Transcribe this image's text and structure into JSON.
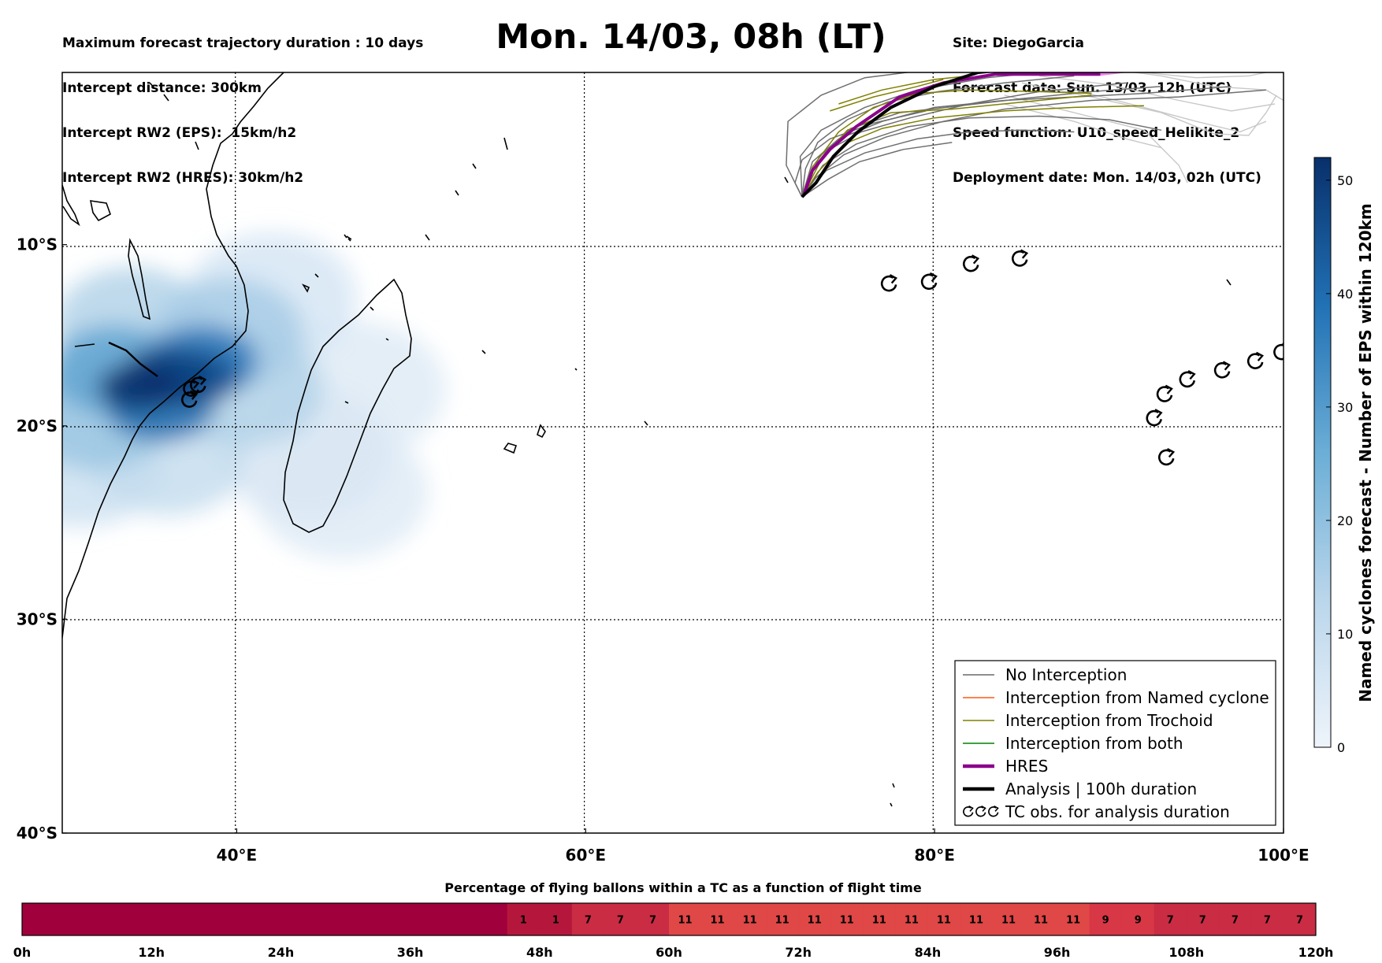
{
  "header": {
    "left_lines": [
      "Maximum forecast trajectory duration : 10 days",
      "Intercept distance: 300km",
      "Intercept RW2 (EPS):  15km/h2",
      "Intercept RW2 (HRES): 30km/h2"
    ],
    "title": "Mon. 14/03, 08h (LT)",
    "right_lines": [
      "Site: DiegoGarcia",
      "Forecast date: Sun. 13/03, 12h (UTC)",
      "Speed function: U10_speed_Helikite_2",
      "Deployment date: Mon. 14/03, 02h (UTC)"
    ]
  },
  "chart_data": [
    {
      "type": "map",
      "xlim": [
        30,
        100
      ],
      "ylim": [
        -40,
        -0.2
      ],
      "x_ticks": [
        {
          "value": 40,
          "label": "40°E"
        },
        {
          "value": 60,
          "label": "60°E"
        },
        {
          "value": 80,
          "label": "80°E"
        },
        {
          "value": 100,
          "label": "100°E"
        }
      ],
      "y_ticks": [
        {
          "value": -10,
          "label": "10°S"
        },
        {
          "value": -20,
          "label": "20°S"
        },
        {
          "value": -30,
          "label": "30°S"
        },
        {
          "value": -40,
          "label": "40°S"
        }
      ],
      "grid": true,
      "colorbar": {
        "label": "Named cyclones forecast - Number of EPS within 120km",
        "range": [
          0,
          52
        ],
        "ticks": [
          0,
          10,
          20,
          30,
          40,
          50
        ],
        "colors": [
          "#e8f0fa",
          "#08306b"
        ]
      },
      "density_field": [
        {
          "lon": 34.5,
          "lat": -17.9,
          "value": 52
        },
        {
          "lon": 36.0,
          "lat": -17.2,
          "value": 48
        },
        {
          "lon": 37.3,
          "lat": -17.4,
          "value": 46
        },
        {
          "lon": 38.0,
          "lat": -16.5,
          "value": 38
        },
        {
          "lon": 35.6,
          "lat": -19.0,
          "value": 40
        },
        {
          "lon": 33.0,
          "lat": -17.0,
          "value": 28
        },
        {
          "lon": 32.0,
          "lat": -19.5,
          "value": 18
        },
        {
          "lon": 34.0,
          "lat": -14.5,
          "value": 14
        },
        {
          "lon": 39.5,
          "lat": -15.0,
          "value": 16
        },
        {
          "lon": 40.5,
          "lat": -18.0,
          "value": 14
        },
        {
          "lon": 31.0,
          "lat": -22.0,
          "value": 8
        },
        {
          "lon": 36.0,
          "lat": -21.5,
          "value": 10
        },
        {
          "lon": 42.0,
          "lat": -13.0,
          "value": 6
        },
        {
          "lon": 44.0,
          "lat": -21.5,
          "value": 5
        },
        {
          "lon": 47.0,
          "lat": -18.0,
          "value": 4
        },
        {
          "lon": 46.0,
          "lat": -23.5,
          "value": 4
        }
      ],
      "tc_observations": [
        {
          "lon": 37.4,
          "lat": -18.0
        },
        {
          "lon": 37.8,
          "lat": -17.8
        },
        {
          "lon": 37.3,
          "lat": -18.6
        },
        {
          "lon": 77.4,
          "lat": -12.2
        },
        {
          "lon": 79.7,
          "lat": -12.1
        },
        {
          "lon": 82.1,
          "lat": -11.1
        },
        {
          "lon": 84.9,
          "lat": -10.8
        },
        {
          "lon": 99.9,
          "lat": -16.0
        },
        {
          "lon": 98.4,
          "lat": -16.5
        },
        {
          "lon": 96.5,
          "lat": -17.0
        },
        {
          "lon": 94.5,
          "lat": -17.5
        },
        {
          "lon": 93.2,
          "lat": -18.3
        },
        {
          "lon": 92.6,
          "lat": -19.6
        },
        {
          "lon": 93.3,
          "lat": -21.7
        }
      ],
      "trajectories": {
        "origin": {
          "lon": 72.4,
          "lat": -7.3
        },
        "analysis": [
          [
            72.4,
            -7.3
          ],
          [
            73.2,
            -6.5
          ],
          [
            74.2,
            -5.0
          ],
          [
            75.6,
            -3.6
          ],
          [
            77.5,
            -2.2
          ],
          [
            80.0,
            -1.0
          ],
          [
            82.5,
            -0.2
          ],
          [
            84.5,
            0.0
          ]
        ],
        "hres": [
          [
            72.5,
            -7.2
          ],
          [
            73.0,
            -5.8
          ],
          [
            74.0,
            -4.6
          ],
          [
            75.5,
            -3.3
          ],
          [
            78.0,
            -1.6
          ],
          [
            80.5,
            -0.8
          ],
          [
            83.5,
            -0.3
          ],
          [
            89.5,
            -0.3
          ],
          [
            92,
            0.0
          ]
        ],
        "eps_no_interception": [
          [
            [
              72.4,
              -7.3
            ],
            [
              71.5,
              -5.5
            ],
            [
              71.6,
              -3.0
            ],
            [
              73.5,
              -1.5
            ],
            [
              76,
              -0.5
            ],
            [
              80,
              0.0
            ]
          ],
          [
            [
              72.4,
              -7.3
            ],
            [
              72.3,
              -5.0
            ],
            [
              73.5,
              -3.5
            ],
            [
              76,
              -2.2
            ],
            [
              79,
              -1.2
            ],
            [
              83,
              -0.5
            ],
            [
              88,
              0.0
            ]
          ],
          [
            [
              72.4,
              -7.3
            ],
            [
              73.0,
              -5.3
            ],
            [
              74.5,
              -4.0
            ],
            [
              77,
              -3.0
            ],
            [
              80,
              -2.2
            ],
            [
              84,
              -1.8
            ],
            [
              88,
              -1.6
            ],
            [
              92,
              -1.4
            ],
            [
              97,
              -1.0
            ]
          ],
          [
            [
              72.4,
              -7.3
            ],
            [
              73.6,
              -5.5
            ],
            [
              75.5,
              -4.3
            ],
            [
              78.5,
              -3.3
            ],
            [
              82,
              -2.8
            ],
            [
              86,
              -2.7
            ],
            [
              90,
              -2.9
            ],
            [
              93,
              -3.5
            ]
          ],
          [
            [
              72.4,
              -7.3
            ],
            [
              73.8,
              -5.8
            ],
            [
              76.0,
              -4.8
            ],
            [
              79,
              -4.0
            ],
            [
              82,
              -3.6
            ],
            [
              85,
              -3.5
            ],
            [
              88,
              -3.6
            ]
          ],
          [
            [
              72.4,
              -7.3
            ],
            [
              73.2,
              -6.2
            ],
            [
              74.8,
              -4.9
            ],
            [
              77.2,
              -3.9
            ],
            [
              80.5,
              -3.0
            ],
            [
              84,
              -2.3
            ],
            [
              89,
              -1.8
            ],
            [
              94,
              -1.6
            ],
            [
              99,
              -1.2
            ]
          ],
          [
            [
              72.4,
              -7.3
            ],
            [
              72.8,
              -6.0
            ],
            [
              73.8,
              -4.7
            ],
            [
              75.8,
              -3.6
            ],
            [
              78.6,
              -2.8
            ],
            [
              82,
              -2.0
            ],
            [
              86,
              -1.3
            ],
            [
              91,
              -0.8
            ]
          ],
          [
            [
              72.4,
              -7.3
            ],
            [
              73.9,
              -6.3
            ],
            [
              75.7,
              -5.3
            ],
            [
              78.2,
              -4.6
            ],
            [
              81,
              -4.2
            ]
          ],
          [
            [
              72.4,
              -7.3
            ],
            [
              72.6,
              -5.7
            ],
            [
              73.3,
              -4.2
            ],
            [
              75,
              -2.9
            ],
            [
              77.3,
              -1.9
            ],
            [
              80.2,
              -1.3
            ],
            [
              84,
              -0.8
            ],
            [
              88,
              -0.4
            ]
          ],
          [
            [
              72.4,
              -7.3
            ],
            [
              73.4,
              -5.0
            ],
            [
              75.2,
              -3.4
            ],
            [
              78,
              -2.5
            ],
            [
              81.5,
              -2.1
            ],
            [
              85,
              -1.7
            ],
            [
              89,
              -1.3
            ],
            [
              93,
              -1.0
            ]
          ],
          [
            [
              72.4,
              -7.3
            ],
            [
              72.0,
              -6.5
            ],
            [
              72.4,
              -5.2
            ],
            [
              74,
              -4.0
            ],
            [
              76.5,
              -3.1
            ],
            [
              79.5,
              -2.4
            ]
          ]
        ],
        "eps_light": [
          [
            [
              84,
              -1.5
            ],
            [
              88,
              -2.5
            ],
            [
              92,
              -3.5
            ],
            [
              94,
              -5.5
            ],
            [
              94.5,
              -6.5
            ]
          ],
          [
            [
              85,
              -0.8
            ],
            [
              89,
              -1.6
            ],
            [
              93,
              -2.5
            ],
            [
              96,
              -3.7
            ],
            [
              98,
              -3.8
            ],
            [
              99,
              -2.5
            ],
            [
              99.6,
              -1.5
            ]
          ],
          [
            [
              86,
              -0.4
            ],
            [
              90,
              -0.9
            ],
            [
              94,
              -1.8
            ],
            [
              97,
              -2.4
            ],
            [
              99.5,
              -2.0
            ]
          ],
          [
            [
              88,
              -1.2
            ],
            [
              92,
              -2.2
            ],
            [
              95,
              -3.0
            ],
            [
              97.5,
              -3.6
            ],
            [
              99,
              -3.0
            ]
          ],
          [
            [
              90,
              0.0
            ],
            [
              93,
              -0.4
            ],
            [
              96,
              -1.0
            ],
            [
              99,
              -1.2
            ],
            [
              100,
              -1.8
            ]
          ],
          [
            [
              84,
              -2.0
            ],
            [
              88,
              -3.0
            ],
            [
              91,
              -4.0
            ],
            [
              93,
              -4.5
            ]
          ],
          [
            [
              92,
              -0.2
            ],
            [
              95,
              -0.5
            ],
            [
              98,
              -0.4
            ],
            [
              100,
              0.0
            ]
          ]
        ],
        "eps_trochoid": [
          [
            [
              72.4,
              -7.3
            ],
            [
              73.5,
              -5.2
            ],
            [
              75,
              -3.5
            ],
            [
              77.5,
              -2.5
            ],
            [
              81,
              -2.3
            ],
            [
              85,
              -1.9
            ],
            [
              89,
              -1.5
            ]
          ],
          [
            [
              72.4,
              -7.3
            ],
            [
              73.0,
              -5.6
            ],
            [
              74.5,
              -3.6
            ],
            [
              76.5,
              -2.2
            ],
            [
              79,
              -1.4
            ],
            [
              82,
              -1.2
            ],
            [
              86,
              -1.3
            ],
            [
              89,
              -1.4
            ]
          ],
          [
            [
              72.4,
              -7.3
            ],
            [
              73.3,
              -5.9
            ],
            [
              74.8,
              -4.3
            ],
            [
              77,
              -3.4
            ],
            [
              80,
              -2.8
            ],
            [
              84,
              -2.4
            ],
            [
              88,
              -2.2
            ],
            [
              92,
              -2.1
            ]
          ],
          [
            [
              74.5,
              -2.0
            ],
            [
              77,
              -1.2
            ],
            [
              80,
              -0.6
            ],
            [
              82,
              -0.4
            ]
          ],
          [
            [
              74,
              -2.4
            ],
            [
              76.5,
              -1.6
            ],
            [
              79,
              -1.0
            ],
            [
              80.5,
              -0.6
            ]
          ]
        ]
      },
      "legend": {
        "position": "bottom-right",
        "entries": [
          {
            "label": "No Interception",
            "color": "#696969",
            "style": "thin"
          },
          {
            "label": "Interception from Named cyclone",
            "color": "#ff5a12",
            "style": "thin"
          },
          {
            "label": "Interception from Trochoid",
            "color": "#808000",
            "style": "thin"
          },
          {
            "label": "Interception from both",
            "color": "#008000",
            "style": "thin"
          },
          {
            "label": "HRES",
            "color": "#8b008b",
            "style": "thick"
          },
          {
            "label": "Analysis | 100h duration",
            "color": "#000000",
            "style": "thick"
          },
          {
            "label": "TC obs. for analysis duration",
            "color": "#000000",
            "style": "marker"
          }
        ]
      }
    },
    {
      "type": "heatmap",
      "title": "Percentage of flying ballons within a TC as a function of flight time",
      "x_ticks": [
        "0h",
        "12h",
        "24h",
        "36h",
        "48h",
        "60h",
        "72h",
        "84h",
        "96h",
        "108h",
        "120h"
      ],
      "cell_hours": 3,
      "values": [
        0,
        0,
        0,
        0,
        0,
        0,
        0,
        0,
        0,
        0,
        0,
        0,
        0,
        0,
        0,
        1,
        1,
        7,
        7,
        7,
        11,
        11,
        11,
        11,
        11,
        11,
        11,
        11,
        11,
        11,
        11,
        11,
        11,
        9,
        9,
        7,
        7,
        7,
        7,
        7
      ],
      "color_map": {
        "0": "#a0003c",
        "1": "#b5173c",
        "7": "#c92c43",
        "9": "#d83745",
        "11": "#e04747"
      }
    }
  ]
}
